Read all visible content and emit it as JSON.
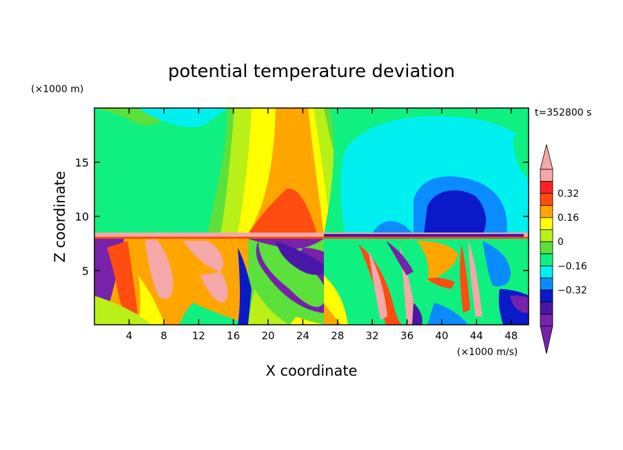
{
  "chart_data": {
    "type": "heatmap",
    "title": "potential temperature deviation",
    "time_label": "t=352800 s",
    "xlabel": "X coordinate",
    "ylabel": "Z coordinate",
    "x_unit": "(×1000 m/s)",
    "y_unit": "(×1000 m)",
    "xlim": [
      0,
      50
    ],
    "ylim": [
      0,
      20
    ],
    "x_ticks": [
      4,
      8,
      12,
      16,
      20,
      24,
      28,
      32,
      36,
      40,
      44,
      48
    ],
    "y_ticks": [
      5,
      10,
      15
    ],
    "colorbar": {
      "levels": [
        -0.48,
        -0.4,
        -0.32,
        -0.24,
        -0.16,
        -0.08,
        0,
        0.08,
        0.16,
        0.24,
        0.32,
        0.4
      ],
      "tick_labels": [
        "0.32",
        "0.16",
        "0",
        "−0.16",
        "−0.32"
      ],
      "tick_values": [
        0.32,
        0.16,
        0,
        -0.16,
        -0.32
      ],
      "colors": [
        "#7722aa",
        "#4a18a8",
        "#0a1ac8",
        "#0a8cff",
        "#00f0f0",
        "#10f080",
        "#5ce03c",
        "#b8f018",
        "#ffff00",
        "#ffa500",
        "#ff4c10",
        "#ff2020",
        "#f4a8a8"
      ],
      "extend": "both"
    }
  }
}
